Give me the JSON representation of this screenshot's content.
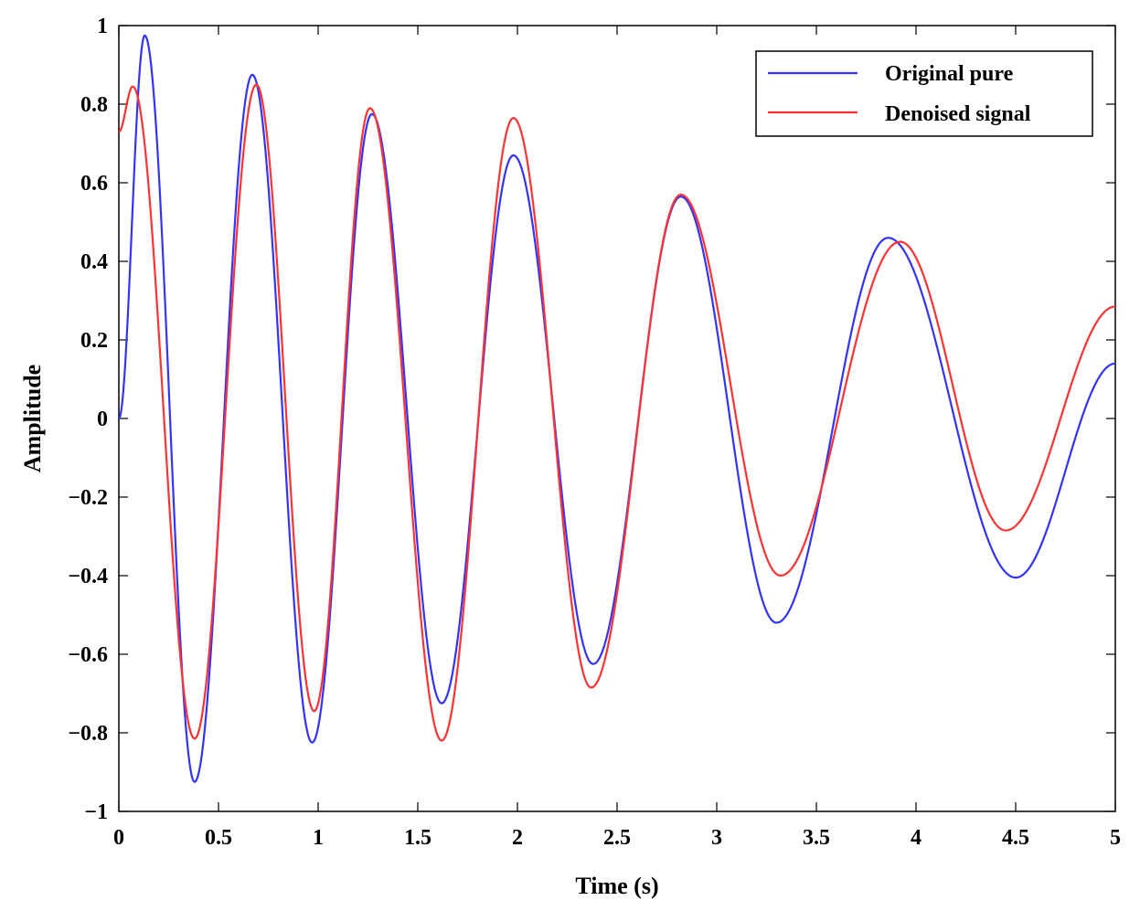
{
  "chart_data": {
    "type": "line",
    "title": "",
    "xlabel": "Time (s)",
    "ylabel": "Amplitude",
    "xlim": [
      0,
      5
    ],
    "ylim": [
      -1,
      1
    ],
    "xticks": [
      0,
      0.5,
      1,
      1.5,
      2,
      2.5,
      3,
      3.5,
      4,
      4.5,
      5
    ],
    "xtick_labels": [
      "0",
      "0.5",
      "1",
      "1.5",
      "2",
      "2.5",
      "3",
      "3.5",
      "4",
      "4.5",
      "5"
    ],
    "yticks": [
      -1,
      -0.8,
      -0.6,
      -0.4,
      -0.2,
      0,
      0.2,
      0.4,
      0.6,
      0.8,
      1
    ],
    "ytick_labels": [
      "−1",
      "−0.8",
      "−0.6",
      "−0.4",
      "−0.2",
      "0",
      "0.2",
      "0.4",
      "0.6",
      "0.8",
      "1"
    ],
    "grid": false,
    "legend_position": "top-right",
    "series": [
      {
        "name": "Original pure",
        "color": "#3333ff",
        "points": [
          [
            0,
            0
          ],
          [
            0.13,
            0.975
          ],
          [
            0.38,
            -0.925
          ],
          [
            0.67,
            0.875
          ],
          [
            0.97,
            -0.825
          ],
          [
            1.27,
            0.775
          ],
          [
            1.62,
            -0.725
          ],
          [
            1.98,
            0.67
          ],
          [
            2.38,
            -0.625
          ],
          [
            2.82,
            0.565
          ],
          [
            3.3,
            -0.52
          ],
          [
            3.86,
            0.46
          ],
          [
            4.5,
            -0.405
          ],
          [
            5.0,
            0.14
          ]
        ]
      },
      {
        "name": "Denoised signal",
        "color": "#ff3333",
        "points": [
          [
            0,
            0.73
          ],
          [
            0.07,
            0.845
          ],
          [
            0.38,
            -0.815
          ],
          [
            0.69,
            0.85
          ],
          [
            0.98,
            -0.745
          ],
          [
            1.26,
            0.79
          ],
          [
            1.62,
            -0.82
          ],
          [
            1.98,
            0.765
          ],
          [
            2.37,
            -0.685
          ],
          [
            2.82,
            0.57
          ],
          [
            3.32,
            -0.4
          ],
          [
            3.92,
            0.45
          ],
          [
            4.45,
            -0.285
          ],
          [
            5.0,
            0.285
          ]
        ]
      }
    ]
  }
}
